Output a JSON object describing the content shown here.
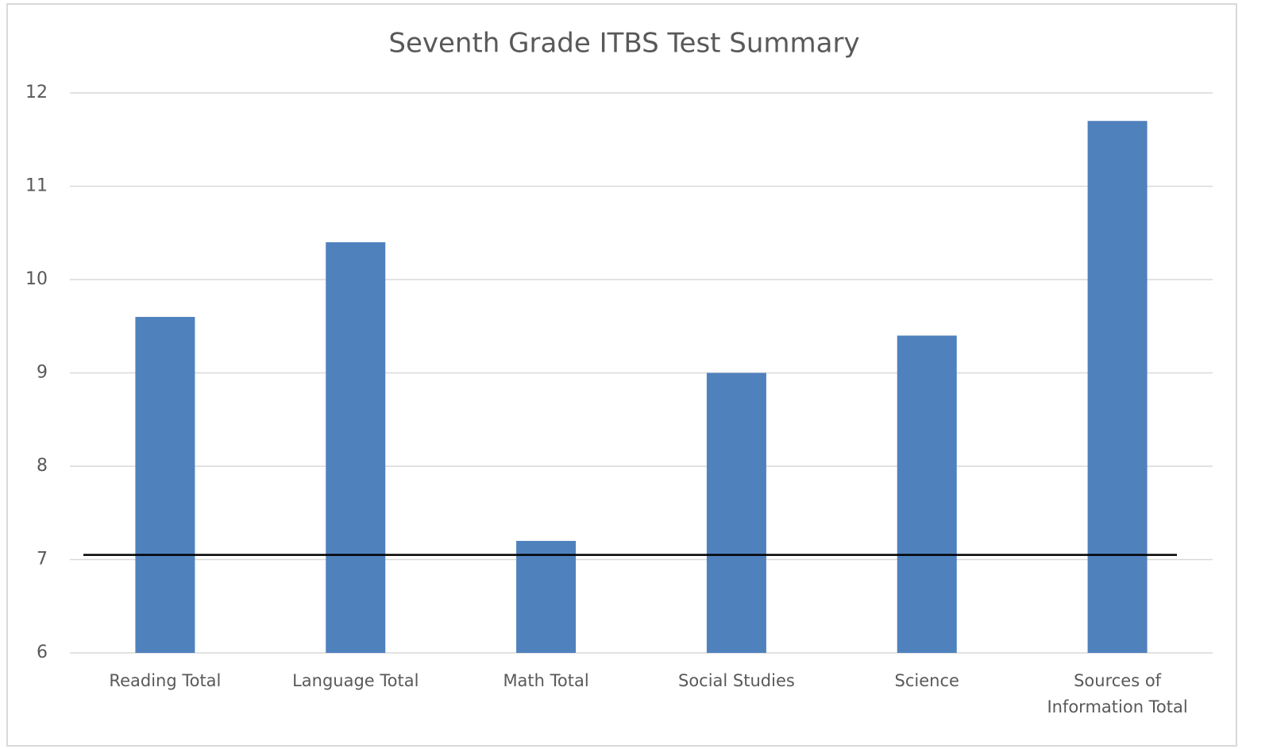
{
  "chart_data": {
    "type": "bar",
    "title": "Seventh Grade ITBS Test Summary",
    "categories": [
      "Reading Total",
      "Language Total",
      "Math Total",
      "Social Studies",
      "Science",
      "Sources of Information Total"
    ],
    "values": [
      9.6,
      10.4,
      7.2,
      9.0,
      9.4,
      11.7
    ],
    "color": "#4f81bd",
    "ylim": [
      6,
      12
    ],
    "yticks": [
      6,
      7,
      8,
      9,
      10,
      11,
      12
    ],
    "grid": true,
    "reference_line": 7.05,
    "reference_color": "#000000"
  }
}
